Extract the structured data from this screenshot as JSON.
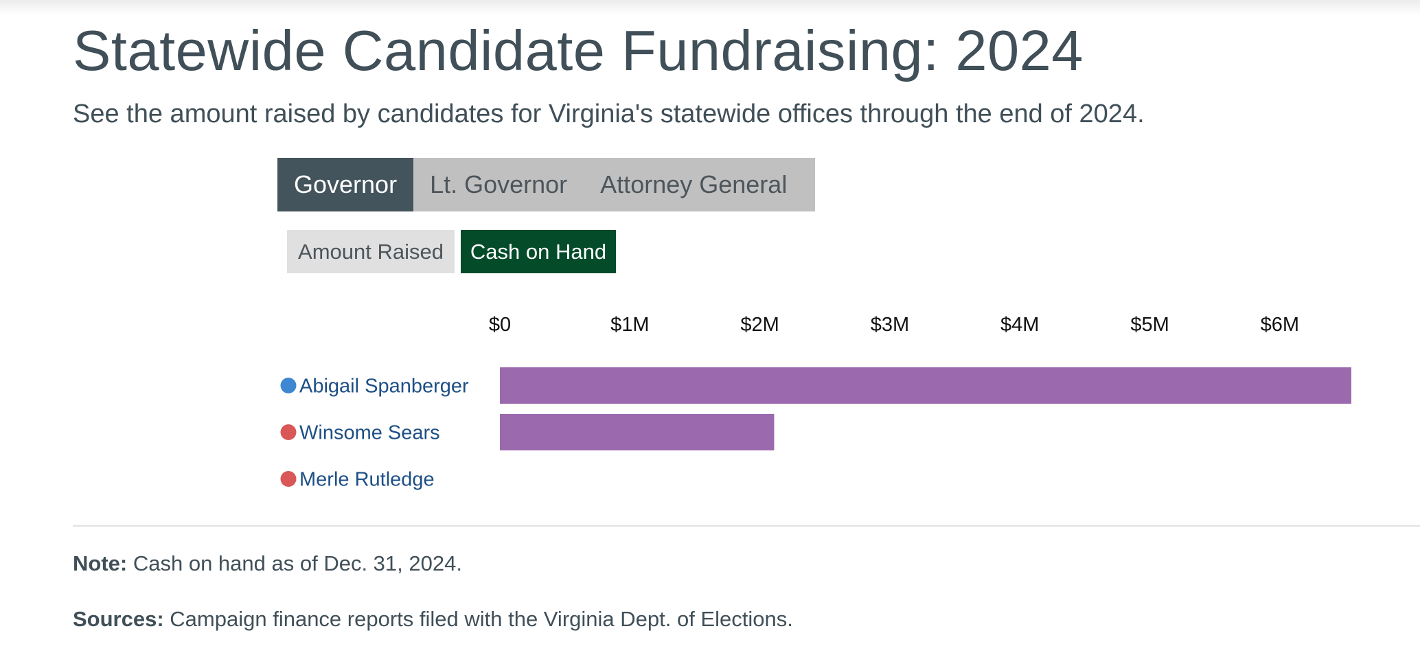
{
  "title": "Statewide Candidate Fundraising: 2024",
  "subtitle": "See the amount raised by candidates for Virginia's statewide offices through the end of 2024.",
  "office_tabs": [
    {
      "label": "Governor",
      "active": true
    },
    {
      "label": "Lt. Governor",
      "active": false
    },
    {
      "label": "Attorney General",
      "active": false
    }
  ],
  "metric_tabs": [
    {
      "label": "Amount Raised",
      "active": false
    },
    {
      "label": "Cash on Hand",
      "active": true
    }
  ],
  "colors": {
    "bar": "#9b69ad",
    "democrat": "#3f87d0",
    "republican": "#d95757",
    "active_office_tab": "#44545c",
    "active_metric_tab": "#044b2a"
  },
  "chart_data": {
    "type": "bar",
    "orientation": "horizontal",
    "title": "",
    "xlabel": "",
    "ylabel": "",
    "xlim": [
      0,
      6.55
    ],
    "axis_position": "top",
    "x_ticks": [
      0,
      1,
      2,
      3,
      4,
      5,
      6
    ],
    "x_tick_labels": [
      "$0",
      "$1M",
      "$2M",
      "$3M",
      "$4M",
      "$5M",
      "$6M"
    ],
    "units": "millions of dollars",
    "grid": false,
    "categories": [
      "Abigail Spanberger",
      "Winsome Sears",
      "Merle Rutledge"
    ],
    "party": [
      "democrat",
      "republican",
      "republican"
    ],
    "values": [
      6.55,
      2.11,
      0.0
    ]
  },
  "note": {
    "label": "Note:",
    "text": "Cash on hand as of Dec. 31, 2024."
  },
  "sources": {
    "label": "Sources:",
    "text": "Campaign finance reports filed with the Virginia Dept. of Elections."
  }
}
